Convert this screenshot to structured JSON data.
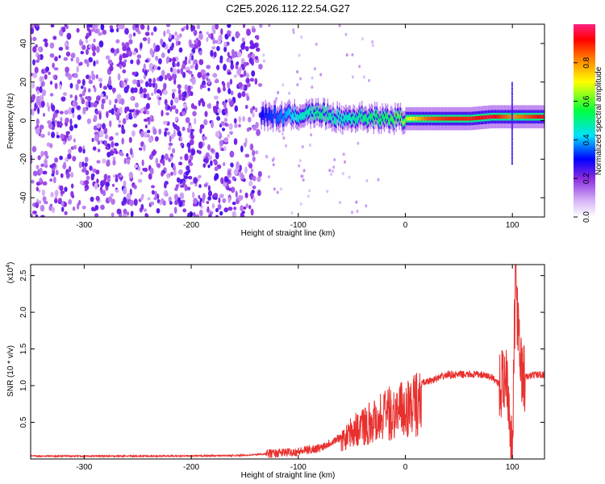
{
  "title": "C2E5.2026.112.22.54.G27",
  "chart_data": [
    {
      "type": "heatmap",
      "xlabel": "Height of straight line (km)",
      "ylabel": "Frequency (Hz)",
      "xlim": [
        -350,
        130
      ],
      "ylim": [
        -50,
        50
      ],
      "xticks": [
        "-300",
        "-200",
        "-100",
        "0",
        "100"
      ],
      "yticks": [
        "-40",
        "-20",
        "0",
        "20",
        "40"
      ],
      "colorbar": {
        "label": "Normalized spectral amplitude",
        "range": [
          0,
          1
        ],
        "ticks": [
          "0.0",
          "0.2",
          "0.4",
          "0.6",
          "0.8"
        ]
      },
      "noise_region_x": [
        -350,
        -135
      ],
      "signal_ridge": [
        {
          "x": -135,
          "freq": 3,
          "amp": 0.3
        },
        {
          "x": -120,
          "freq": 2,
          "amp": 0.35
        },
        {
          "x": -100,
          "freq": 3,
          "amp": 0.45
        },
        {
          "x": -80,
          "freq": 4,
          "amp": 0.5
        },
        {
          "x": -60,
          "freq": 1,
          "amp": 0.45
        },
        {
          "x": -40,
          "freq": 2,
          "amp": 0.5
        },
        {
          "x": -20,
          "freq": 1,
          "amp": 0.55
        },
        {
          "x": 0,
          "freq": 1,
          "amp": 0.65
        },
        {
          "x": 20,
          "freq": 1,
          "amp": 0.85
        },
        {
          "x": 40,
          "freq": 1,
          "amp": 0.9
        },
        {
          "x": 60,
          "freq": 1,
          "amp": 0.9
        },
        {
          "x": 80,
          "freq": 2,
          "amp": 0.95
        },
        {
          "x": 100,
          "freq": 2,
          "amp": 0.8
        },
        {
          "x": 130,
          "freq": 2,
          "amp": 0.95
        }
      ]
    },
    {
      "type": "line",
      "xlabel": "Height of straight line (km)",
      "ylabel": "SNR (10 * v/v)",
      "y_multiplier": "(x10",
      "y_multiplier_exp": "4",
      "y_multiplier_close": ")",
      "xlim": [
        -350,
        130
      ],
      "ylim": [
        0,
        2.65
      ],
      "xticks": [
        "-300",
        "-200",
        "-100",
        "0",
        "100"
      ],
      "yticks": [
        "0.5",
        "1.0",
        "1.5",
        "2.0",
        "2.5"
      ],
      "line_color": "#e8302e",
      "x": [
        -350,
        -300,
        -250,
        -200,
        -150,
        -120,
        -100,
        -80,
        -60,
        -50,
        -40,
        -30,
        -20,
        -10,
        0,
        10,
        20,
        30,
        40,
        50,
        60,
        70,
        80,
        90,
        95,
        100,
        103,
        106,
        110,
        120,
        130
      ],
      "y": [
        0.04,
        0.04,
        0.04,
        0.04,
        0.05,
        0.08,
        0.1,
        0.15,
        0.3,
        0.5,
        0.6,
        0.7,
        0.8,
        0.85,
        0.9,
        1.0,
        1.05,
        1.1,
        1.15,
        1.15,
        1.15,
        1.15,
        1.12,
        1.0,
        1.2,
        0.05,
        2.6,
        1.5,
        1.1,
        1.15,
        1.15
      ]
    }
  ]
}
